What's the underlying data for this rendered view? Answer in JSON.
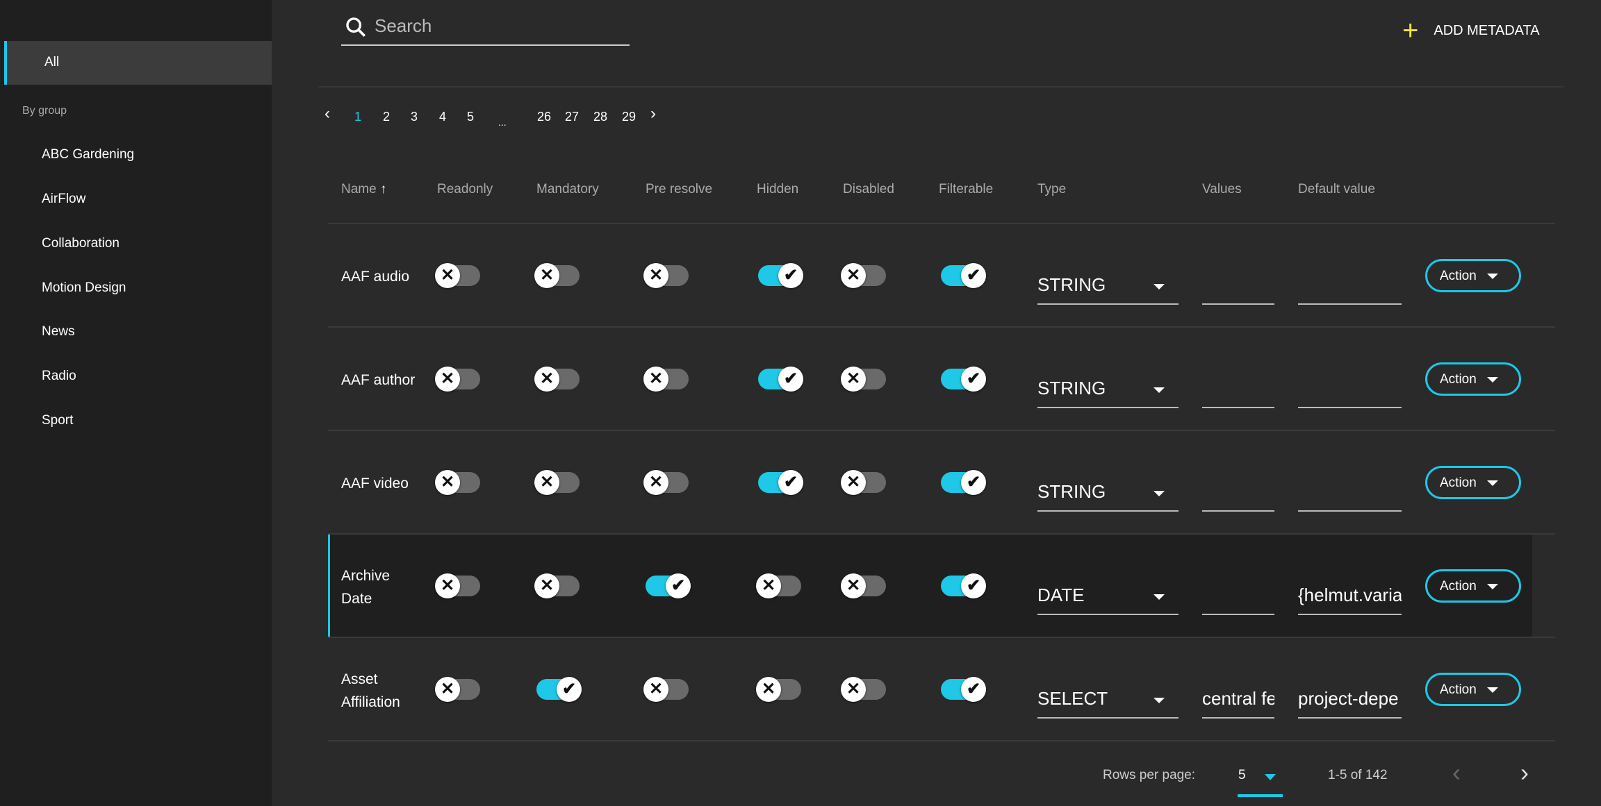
{
  "sidebar": {
    "all_label": "All",
    "group_heading": "By group",
    "items": [
      "ABC Gardening",
      "AirFlow",
      "Collaboration",
      "Motion Design",
      "News",
      "Radio",
      "Sport"
    ]
  },
  "search": {
    "placeholder": "Search"
  },
  "toolbar": {
    "add_label": "ADD METADATA"
  },
  "pagination": {
    "prev": "‹",
    "pages": [
      "1",
      "2",
      "3",
      "4",
      "5"
    ],
    "ellipsis": "...",
    "end_pages": [
      "26",
      "27",
      "28",
      "29"
    ],
    "next": "›",
    "current": "1"
  },
  "table": {
    "headers": [
      "Name",
      "Readonly",
      "Mandatory",
      "Pre resolve",
      "Hidden",
      "Disabled",
      "Filterable",
      "Type",
      "Values",
      "Default value"
    ],
    "sort_icon": "arrow-up-icon",
    "action_label": "Action",
    "rows": [
      {
        "name": "AAF audio",
        "readonly": false,
        "mandatory": false,
        "pre_resolve": false,
        "hidden": true,
        "disabled": false,
        "filterable": true,
        "type": "STRING",
        "values": "",
        "default": ""
      },
      {
        "name": "AAF author",
        "readonly": false,
        "mandatory": false,
        "pre_resolve": false,
        "hidden": true,
        "disabled": false,
        "filterable": true,
        "type": "STRING",
        "values": "",
        "default": ""
      },
      {
        "name": "AAF video",
        "readonly": false,
        "mandatory": false,
        "pre_resolve": false,
        "hidden": true,
        "disabled": false,
        "filterable": true,
        "type": "STRING",
        "values": "",
        "default": ""
      },
      {
        "name": "Archive Date",
        "readonly": false,
        "mandatory": false,
        "pre_resolve": true,
        "hidden": false,
        "disabled": false,
        "filterable": true,
        "type": "DATE",
        "values": "",
        "default": "{helmut.varia",
        "selected": true
      },
      {
        "name": "Asset Affiliation",
        "readonly": false,
        "mandatory": true,
        "pre_resolve": false,
        "hidden": false,
        "disabled": false,
        "filterable": true,
        "type": "SELECT",
        "values": "central fe",
        "default": "project-depe"
      }
    ]
  },
  "footer": {
    "rows_per_page_label": "Rows per page:",
    "rows_per_page": "5",
    "range": "1-5 of 142",
    "prev": "‹",
    "next": "›"
  },
  "colors": {
    "accent": "#1ec8e6",
    "add_icon": "#f2e33a"
  }
}
